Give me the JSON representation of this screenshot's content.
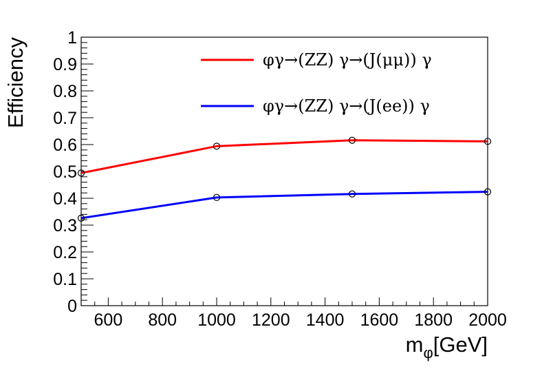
{
  "chart_data": {
    "type": "line",
    "xlabel_main": "m",
    "xlabel_sub": "φ",
    "xlabel_rest": "[GeV]",
    "ylabel": "Efficiency",
    "xlim": [
      500,
      2000
    ],
    "ylim": [
      0,
      1
    ],
    "x_ticks": [
      600,
      800,
      1000,
      1200,
      1400,
      1600,
      1800,
      2000
    ],
    "x_tick_labels": [
      "600",
      "800",
      "1000",
      "1200",
      "1400",
      "1600",
      "1800",
      "2000"
    ],
    "y_ticks": [
      0,
      0.1,
      0.2,
      0.3,
      0.4,
      0.5,
      0.6,
      0.7,
      0.8,
      0.9,
      1
    ],
    "y_tick_labels": [
      "0",
      "0.1",
      "0.2",
      "0.3",
      "0.4",
      "0.5",
      "0.6",
      "0.7",
      "0.8",
      "0.9",
      "1"
    ],
    "grid": false,
    "legend_position": "top-right",
    "series": [
      {
        "name": "φγ→(ZZ) γ→(J(μμ)) γ",
        "color": "#ff0000",
        "x": [
          500,
          1000,
          1500,
          2000
        ],
        "y": [
          0.494,
          0.594,
          0.616,
          0.612
        ]
      },
      {
        "name": "φγ→(ZZ) γ→(J(ee)) γ",
        "color": "#0000ff",
        "x": [
          500,
          1000,
          1500,
          2000
        ],
        "y": [
          0.326,
          0.403,
          0.416,
          0.424
        ]
      }
    ]
  }
}
